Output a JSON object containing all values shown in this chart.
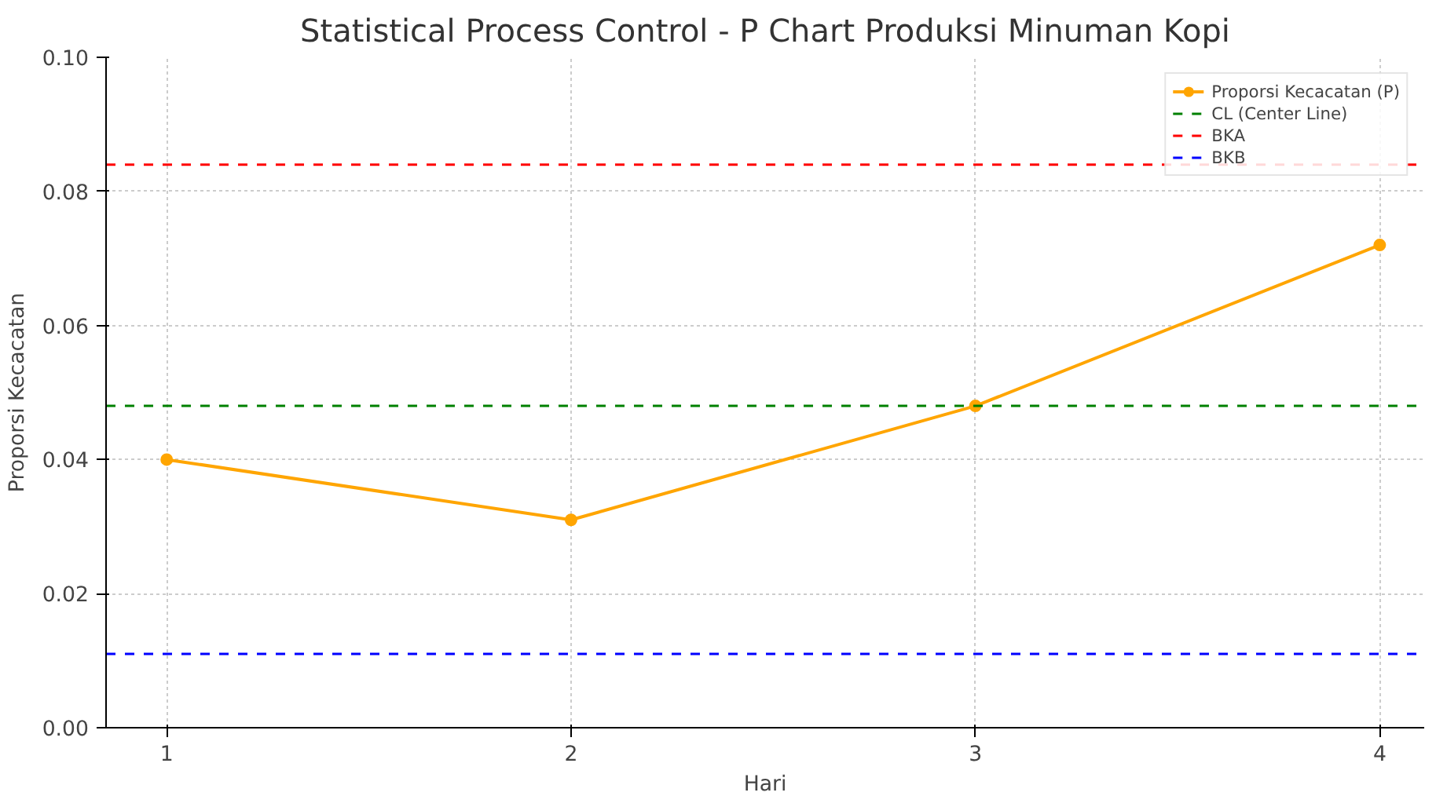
{
  "chart_data": {
    "type": "line",
    "title": "Statistical Process Control - P Chart Produksi Minuman Kopi",
    "xlabel": "Hari",
    "ylabel": "Proporsi Kecacatan",
    "x": [
      1,
      2,
      3,
      4
    ],
    "series": [
      {
        "name": "Proporsi Kecacatan (P)",
        "color": "#ffa500",
        "values": [
          0.04,
          0.031,
          0.048,
          0.072
        ]
      }
    ],
    "ref_lines": [
      {
        "axis": "y",
        "value": 0.048,
        "label": "CL (Center Line)",
        "color": "#008000",
        "line_style": "dashed"
      },
      {
        "axis": "y",
        "value": 0.084,
        "label": "BKA",
        "color": "#ff0000",
        "line_style": "dashed"
      },
      {
        "axis": "y",
        "value": 0.011,
        "label": "BKB",
        "color": "#0000ff",
        "line_style": "dashed"
      }
    ],
    "xlim": [
      0.85,
      4.11
    ],
    "ylim": [
      0,
      0.1
    ],
    "xticks": [
      1,
      2,
      3,
      4
    ],
    "yticks": [
      {
        "value": 0,
        "label": "0.00"
      },
      {
        "value": 0.02,
        "label": "0.02"
      },
      {
        "value": 0.04,
        "label": "0.04"
      },
      {
        "value": 0.06,
        "label": "0.06"
      },
      {
        "value": 0.08,
        "label": "0.08"
      },
      {
        "value": 0.1,
        "label": "0.10"
      }
    ],
    "grid": true,
    "legend": "top right",
    "marker": "circle",
    "line_style": "solid"
  }
}
